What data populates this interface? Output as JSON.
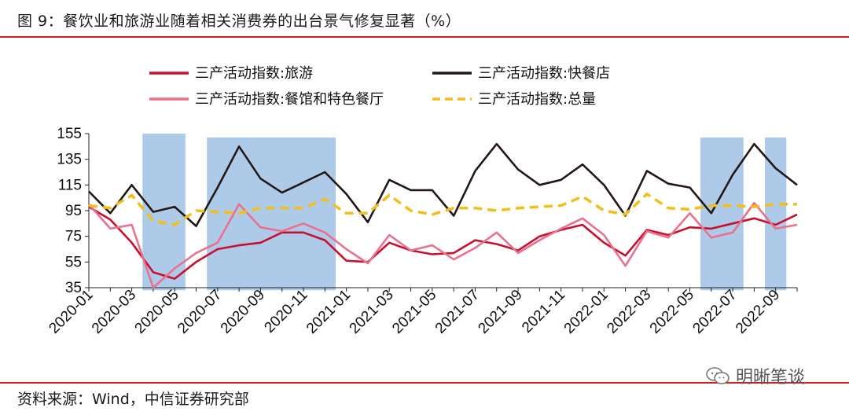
{
  "page": {
    "title": "图 9：餐饮业和旅游业随着相关消费券的出台景气修复显著（%）",
    "source": "资料来源：Wind，中信证券研究部",
    "watermark": "明晰笔谈"
  },
  "chart_data": {
    "type": "line",
    "title": "图 9：餐饮业和旅游业随着相关消费券的出台景气修复显著（%）",
    "x": [
      "2020-01",
      "2020-02",
      "2020-03",
      "2020-04",
      "2020-05",
      "2020-06",
      "2020-07",
      "2020-08",
      "2020-09",
      "2020-10",
      "2020-11",
      "2020-12",
      "2021-01",
      "2021-02",
      "2021-03",
      "2021-04",
      "2021-05",
      "2021-06",
      "2021-07",
      "2021-08",
      "2021-09",
      "2021-10",
      "2021-11",
      "2021-12",
      "2022-01",
      "2022-02",
      "2022-03",
      "2022-04",
      "2022-05",
      "2022-06",
      "2022-07",
      "2022-08",
      "2022-09",
      "2022-10"
    ],
    "xticks": [
      "2020-01",
      "2020-03",
      "2020-05",
      "2020-07",
      "2020-09",
      "2020-11",
      "2021-01",
      "2021-03",
      "2021-05",
      "2021-07",
      "2021-09",
      "2021-11",
      "2022-01",
      "2022-03",
      "2022-05",
      "2022-07",
      "2022-09"
    ],
    "ylim": [
      35,
      155
    ],
    "yticks": [
      35,
      55,
      75,
      95,
      115,
      135,
      155
    ],
    "grid": false,
    "legend_position": "top",
    "shaded_periods": [
      {
        "start": "2020-04",
        "end": "2020-05"
      },
      {
        "start": "2020-07",
        "end": "2020-12"
      },
      {
        "start": "2022-06",
        "end": "2022-07"
      },
      {
        "start": "2022-09",
        "end": "2022-09"
      }
    ],
    "series": [
      {
        "name": "三产活动指数:旅游",
        "color": "#c8102e",
        "style": "solid",
        "values": [
          98,
          88,
          70,
          47,
          42,
          55,
          65,
          68,
          70,
          78,
          78,
          72,
          56,
          55,
          70,
          64,
          61,
          62,
          72,
          69,
          64,
          75,
          80,
          84,
          70,
          60,
          80,
          76,
          82,
          81,
          85,
          89,
          84,
          92
        ]
      },
      {
        "name": "三产活动指数:快餐店",
        "color": "#231815",
        "style": "solid",
        "values": [
          110,
          93,
          115,
          94,
          98,
          83,
          113,
          145,
          120,
          109,
          117,
          125,
          108,
          86,
          119,
          111,
          111,
          91,
          126,
          147,
          127,
          115,
          119,
          131,
          115,
          91,
          126,
          116,
          113,
          93,
          123,
          147,
          128,
          115
        ]
      },
      {
        "name": "三产活动指数:餐馆和特色餐厅",
        "color": "#e8728e",
        "style": "solid",
        "values": [
          100,
          81,
          84,
          35,
          50,
          62,
          70,
          100,
          82,
          79,
          85,
          78,
          65,
          54,
          76,
          64,
          68,
          57,
          66,
          78,
          62,
          72,
          81,
          89,
          76,
          52,
          79,
          74,
          93,
          74,
          78,
          101,
          81,
          84
        ]
      },
      {
        "name": "三产活动指数:总量",
        "color": "#f2be1a",
        "style": "dashed",
        "values": [
          99,
          97,
          107,
          87,
          84,
          95,
          94,
          93,
          97,
          97,
          97,
          104,
          93,
          93,
          107,
          95,
          92,
          97,
          97,
          95,
          97,
          98,
          99,
          106,
          95,
          92,
          108,
          97,
          96,
          99,
          99,
          98,
          100,
          100
        ]
      }
    ]
  }
}
